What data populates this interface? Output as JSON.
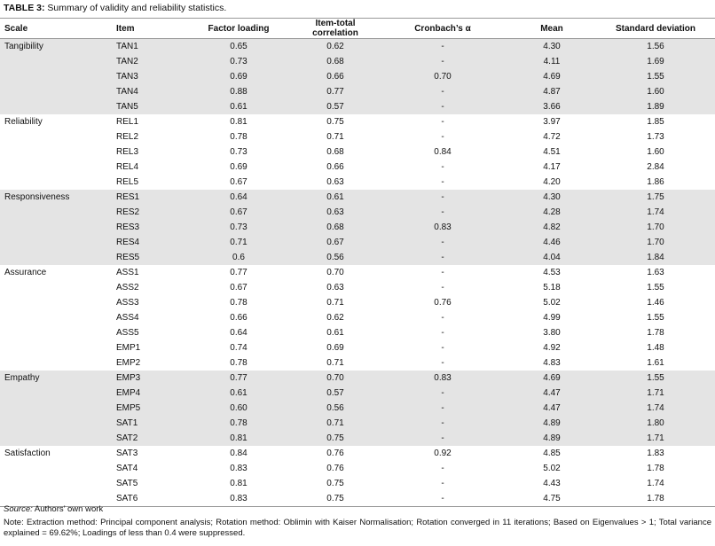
{
  "caption": {
    "label": "TABLE 3:",
    "title": "Summary of validity and reliability statistics."
  },
  "table": {
    "header": [
      "Scale",
      "Item",
      "Factor loading",
      "Item-total correlation",
      "Cronbach’s α",
      "Mean",
      "Standard deviation"
    ],
    "groups": [
      {
        "scale": "Tangibility",
        "rows": [
          [
            "TAN1",
            "0.65",
            "0.62",
            "-",
            "4.30",
            "1.56"
          ],
          [
            "TAN2",
            "0.73",
            "0.68",
            "-",
            "4.11",
            "1.69"
          ],
          [
            "TAN3",
            "0.69",
            "0.66",
            "0.70",
            "4.69",
            "1.55"
          ],
          [
            "TAN4",
            "0.88",
            "0.77",
            "-",
            "4.87",
            "1.60"
          ],
          [
            "TAN5",
            "0.61",
            "0.57",
            "-",
            "3.66",
            "1.89"
          ]
        ]
      },
      {
        "scale": "Reliability",
        "rows": [
          [
            "REL1",
            "0.81",
            "0.75",
            "-",
            "3.97",
            "1.85"
          ],
          [
            "REL2",
            "0.78",
            "0.71",
            "-",
            "4.72",
            "1.73"
          ],
          [
            "REL3",
            "0.73",
            "0.68",
            "0.84",
            "4.51",
            "1.60"
          ],
          [
            "REL4",
            "0.69",
            "0.66",
            "-",
            "4.17",
            "2.84"
          ],
          [
            "REL5",
            "0.67",
            "0.63",
            "-",
            "4.20",
            "1.86"
          ]
        ]
      },
      {
        "scale": "Responsiveness",
        "rows": [
          [
            "RES1",
            "0.64",
            "0.61",
            "-",
            "4.30",
            "1.75"
          ],
          [
            "RES2",
            "0.67",
            "0.63",
            "-",
            "4.28",
            "1.74"
          ],
          [
            "RES3",
            "0.73",
            "0.68",
            "0.83",
            "4.82",
            "1.70"
          ],
          [
            "RES4",
            "0.71",
            "0.67",
            "-",
            "4.46",
            "1.70"
          ],
          [
            "RES5",
            "0.6",
            "0.56",
            "-",
            "4.04",
            "1.84"
          ]
        ]
      },
      {
        "scale": "Assurance",
        "rows": [
          [
            "ASS1",
            "0.77",
            "0.70",
            "-",
            "4.53",
            "1.63"
          ],
          [
            "ASS2",
            "0.67",
            "0.63",
            "-",
            "5.18",
            "1.55"
          ],
          [
            "ASS3",
            "0.78",
            "0.71",
            "0.76",
            "5.02",
            "1.46"
          ],
          [
            "ASS4",
            "0.66",
            "0.62",
            "-",
            "4.99",
            "1.55"
          ],
          [
            "ASS5",
            "0.64",
            "0.61",
            "-",
            "3.80",
            "1.78"
          ],
          [
            "EMP1",
            "0.74",
            "0.69",
            "-",
            "4.92",
            "1.48"
          ],
          [
            "EMP2",
            "0.78",
            "0.71",
            "-",
            "4.83",
            "1.61"
          ]
        ]
      },
      {
        "scale": "Empathy",
        "rows": [
          [
            "EMP3",
            "0.77",
            "0.70",
            "0.83",
            "4.69",
            "1.55"
          ],
          [
            "EMP4",
            "0.61",
            "0.57",
            "-",
            "4.47",
            "1.71"
          ],
          [
            "EMP5",
            "0.60",
            "0.56",
            "-",
            "4.47",
            "1.74"
          ],
          [
            "SAT1",
            "0.78",
            "0.71",
            "-",
            "4.89",
            "1.80"
          ],
          [
            "SAT2",
            "0.81",
            "0.75",
            "-",
            "4.89",
            "1.71"
          ]
        ]
      },
      {
        "scale": "Satisfaction",
        "rows": [
          [
            "SAT3",
            "0.84",
            "0.76",
            "0.92",
            "4.85",
            "1.83"
          ],
          [
            "SAT4",
            "0.83",
            "0.76",
            "-",
            "5.02",
            "1.78"
          ],
          [
            "SAT5",
            "0.81",
            "0.75",
            "-",
            "4.43",
            "1.74"
          ],
          [
            "SAT6",
            "0.83",
            "0.75",
            "-",
            "4.75",
            "1.78"
          ]
        ]
      }
    ]
  },
  "source": {
    "label": "Source:",
    "text": "Authors’ own work"
  },
  "note": "Note: Extraction method: Principal component analysis; Rotation method: Oblimin with Kaiser Normalisation; Rotation converged in 11 iterations; Based on Eigenvalues > 1; Total variance explained = 69.62%; Loadings of less than 0.4 were suppressed."
}
